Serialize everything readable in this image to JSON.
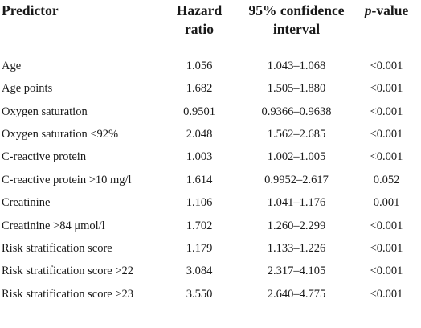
{
  "table": {
    "headers": {
      "predictor": "Predictor",
      "hazard_ratio_line1": "Hazard",
      "hazard_ratio_line2": "ratio",
      "ci_line1": "95% confidence",
      "ci_line2": "interval",
      "p_prefix": "p",
      "p_suffix": "-value"
    },
    "rows": [
      {
        "predictor": "Age",
        "hazard_ratio": "1.056",
        "ci": "1.043–1.068",
        "p": "<0.001"
      },
      {
        "predictor": "Age points",
        "hazard_ratio": "1.682",
        "ci": "1.505–1.880",
        "p": "<0.001"
      },
      {
        "predictor": "Oxygen saturation",
        "hazard_ratio": "0.9501",
        "ci": "0.9366–0.9638",
        "p": "<0.001"
      },
      {
        "predictor": "Oxygen saturation <92%",
        "hazard_ratio": "2.048",
        "ci": "1.562–2.685",
        "p": "<0.001"
      },
      {
        "predictor": "C-reactive protein",
        "hazard_ratio": "1.003",
        "ci": "1.002–1.005",
        "p": "<0.001"
      },
      {
        "predictor": "C-reactive protein >10 mg/l",
        "hazard_ratio": "1.614",
        "ci": "0.9952–2.617",
        "p": "0.052"
      },
      {
        "predictor": "Creatinine",
        "hazard_ratio": "1.106",
        "ci": "1.041–1.176",
        "p": "0.001"
      },
      {
        "predictor": "Creatinine >84 μmol/l",
        "hazard_ratio": "1.702",
        "ci": "1.260–2.299",
        "p": "<0.001"
      },
      {
        "predictor": "Risk stratification score",
        "hazard_ratio": "1.179",
        "ci": "1.133–1.226",
        "p": "<0.001"
      },
      {
        "predictor": "Risk stratification score >22",
        "hazard_ratio": "3.084",
        "ci": "2.317–4.105",
        "p": "<0.001"
      },
      {
        "predictor": "Risk stratification score >23",
        "hazard_ratio": "3.550",
        "ci": "2.640–4.775",
        "p": "<0.001"
      }
    ]
  }
}
